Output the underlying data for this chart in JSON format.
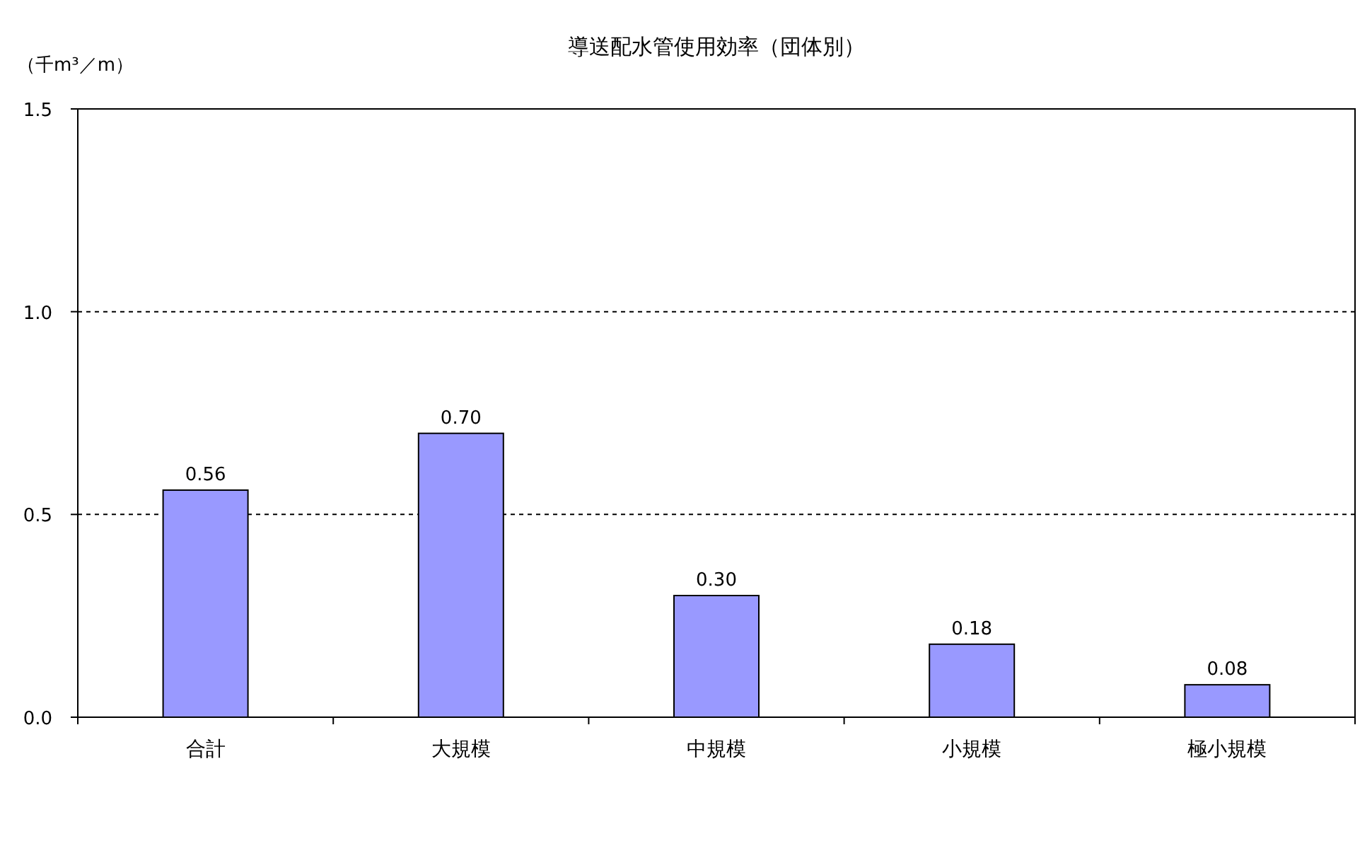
{
  "chart_data": {
    "type": "bar",
    "title": "導送配水管使用効率（団体別）",
    "ylabel": "（千m³／m）",
    "categories": [
      "合計",
      "大規模",
      "中規模",
      "小規模",
      "極小規模"
    ],
    "series": [
      {
        "color": "#9999ff",
        "values": [
          0.56,
          0.7,
          0.3,
          0.18,
          0.08
        ]
      }
    ],
    "value_labels": [
      "0.56",
      "0.70",
      "0.30",
      "0.18",
      "0.08"
    ],
    "ylim": [
      0,
      1.5
    ],
    "yticks": [
      {
        "value": 0,
        "label": "0.0"
      },
      {
        "value": 0.5,
        "label": "0.5"
      },
      {
        "value": 1.0,
        "label": "1.0"
      },
      {
        "value": 1.5,
        "label": "1.5"
      }
    ],
    "grid": "y"
  }
}
